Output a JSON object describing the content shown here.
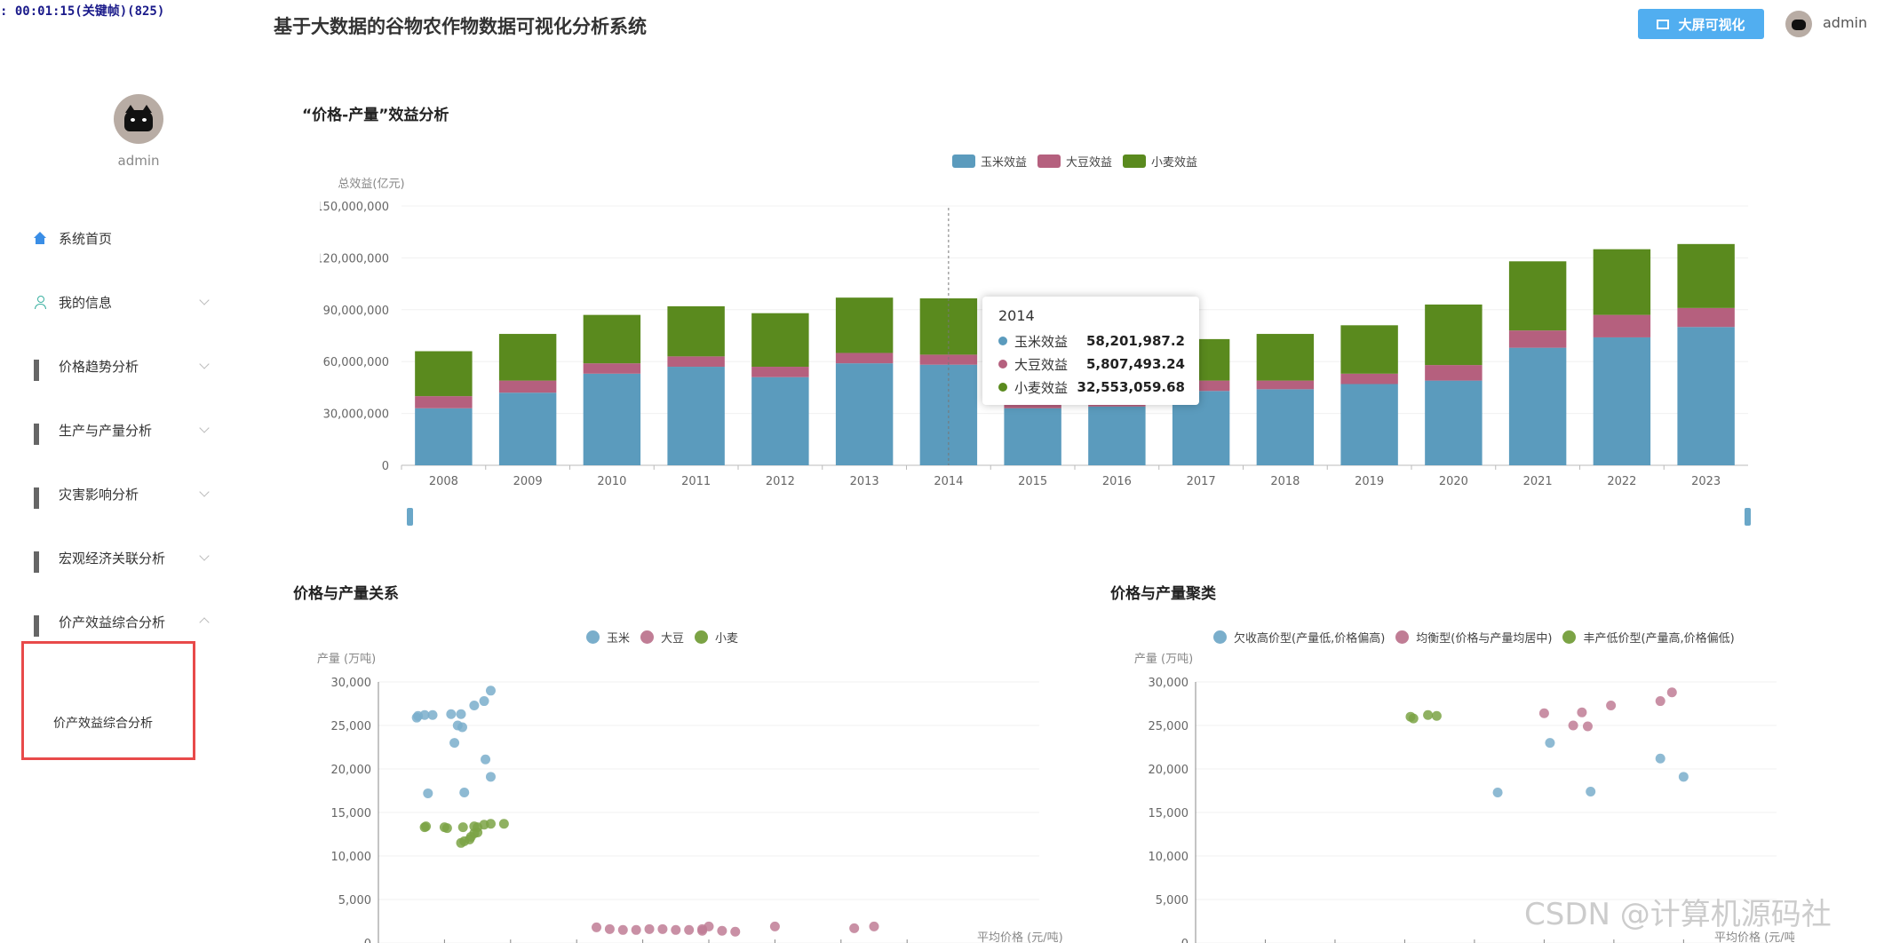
{
  "recording": {
    "text": ": 00:01:15(关键帧)(825)"
  },
  "header": {
    "title": "基于大数据的谷物农作物数据可视化分析系统",
    "big_screen_label": "大屏可视化",
    "username": "admin"
  },
  "sidebar": {
    "username": "admin",
    "items": [
      {
        "label": "系统首页",
        "icon": "home-icon",
        "expandable": false
      },
      {
        "label": "我的信息",
        "icon": "user-icon",
        "expandable": true
      },
      {
        "label": "价格趋势分析",
        "icon": "grid-icon",
        "expandable": true
      },
      {
        "label": "生产与产量分析",
        "icon": "grid-icon",
        "expandable": true
      },
      {
        "label": "灾害影响分析",
        "icon": "grid-icon",
        "expandable": true
      },
      {
        "label": "宏观经济关联分析",
        "icon": "grid-icon",
        "expandable": true
      },
      {
        "label": "价产效益综合分析",
        "icon": "grid-icon",
        "expandable": true,
        "expanded": true
      }
    ],
    "submenu": {
      "label": "价产效益综合分析"
    }
  },
  "colors": {
    "corn": "#5b9bbd",
    "soy": "#b5607e",
    "wheat": "#5a8a1e",
    "accent": "#51aef0",
    "highlight_border": "#e84a4a"
  },
  "chart_data": [
    {
      "type": "bar",
      "stacked": true,
      "title": "“价格-产量”效益分析",
      "ylabel": "总效益(亿元)",
      "ylim": [
        0,
        150000000
      ],
      "yticks": [
        "0",
        "30,000,000",
        "60,000,000",
        "90,000,000",
        "120,000,000",
        "150,000,000"
      ],
      "legend_position": "top-center",
      "categories": [
        "2008",
        "2009",
        "2010",
        "2011",
        "2012",
        "2013",
        "2014",
        "2015",
        "2016",
        "2017",
        "2018",
        "2019",
        "2020",
        "2021",
        "2022",
        "2023"
      ],
      "series": [
        {
          "name": "玉米效益",
          "values": [
            33000000,
            42000000,
            53000000,
            57000000,
            51000000,
            59000000,
            58201987.2,
            33000000,
            34000000,
            43000000,
            44000000,
            47000000,
            49000000,
            68000000,
            74000000,
            80000000
          ]
        },
        {
          "name": "大豆效益",
          "values": [
            7000000,
            7000000,
            6000000,
            6000000,
            6000000,
            6000000,
            5807493.24,
            3000000,
            3000000,
            6000000,
            5000000,
            6000000,
            9000000,
            10000000,
            13000000,
            11000000
          ]
        },
        {
          "name": "小麦效益",
          "values": [
            26000000,
            27000000,
            28000000,
            29000000,
            31000000,
            32000000,
            32553059.68,
            3000000,
            33000000,
            24000000,
            27000000,
            28000000,
            35000000,
            40000000,
            38000000,
            37000000
          ]
        }
      ],
      "tooltip": {
        "title": "2014",
        "rows": [
          {
            "name": "玉米效益",
            "value": "58,201,987.2"
          },
          {
            "name": "大豆效益",
            "value": "5,807,493.24"
          },
          {
            "name": "小麦效益",
            "value": "32,553,059.68"
          }
        ]
      }
    },
    {
      "type": "scatter",
      "title": "价格与产量关系",
      "ylabel": "产量 (万吨)",
      "xlabel": "平均价格 (元/吨)",
      "ylim": [
        0,
        30000
      ],
      "yticks": [
        "0",
        "5,000",
        "10,000",
        "15,000",
        "20,000",
        "25,000",
        "30,000"
      ],
      "legend_position": "top-center",
      "series": [
        {
          "name": "玉米",
          "points": [
            [
              0.058,
              25900
            ],
            [
              0.06,
              26100
            ],
            [
              0.07,
              26200
            ],
            [
              0.082,
              26200
            ],
            [
              0.11,
              26300
            ],
            [
              0.125,
              26300
            ],
            [
              0.12,
              25000
            ],
            [
              0.127,
              24800
            ],
            [
              0.145,
              27300
            ],
            [
              0.16,
              27800
            ],
            [
              0.17,
              29000
            ],
            [
              0.115,
              23000
            ],
            [
              0.162,
              21100
            ],
            [
              0.13,
              17300
            ],
            [
              0.17,
              19100
            ],
            [
              0.075,
              17200
            ]
          ]
        },
        {
          "name": "大豆",
          "points": [
            [
              0.33,
              1800
            ],
            [
              0.35,
              1600
            ],
            [
              0.37,
              1500
            ],
            [
              0.39,
              1500
            ],
            [
              0.41,
              1600
            ],
            [
              0.43,
              1600
            ],
            [
              0.45,
              1500
            ],
            [
              0.47,
              1500
            ],
            [
              0.49,
              1600
            ],
            [
              0.5,
              1900
            ],
            [
              0.52,
              1400
            ],
            [
              0.54,
              1300
            ],
            [
              0.6,
              1900
            ],
            [
              0.72,
              1700
            ],
            [
              0.75,
              1900
            ],
            [
              0.49,
              1400
            ]
          ]
        },
        {
          "name": "小麦",
          "points": [
            [
              0.07,
              13300
            ],
            [
              0.072,
              13400
            ],
            [
              0.1,
              13300
            ],
            [
              0.104,
              13200
            ],
            [
              0.125,
              11500
            ],
            [
              0.13,
              11700
            ],
            [
              0.14,
              12200
            ],
            [
              0.145,
              12600
            ],
            [
              0.15,
              13300
            ],
            [
              0.16,
              13600
            ],
            [
              0.17,
              13700
            ],
            [
              0.19,
              13700
            ],
            [
              0.138,
              11900
            ],
            [
              0.145,
              13400
            ],
            [
              0.128,
              13300
            ],
            [
              0.15,
              12700
            ]
          ]
        }
      ]
    },
    {
      "type": "scatter",
      "title": "价格与产量聚类",
      "ylabel": "产量 (万吨)",
      "xlabel": "平均价格 (元/吨)",
      "ylim": [
        0,
        30000
      ],
      "yticks": [
        "0",
        "5,000",
        "10,000",
        "15,000",
        "20,000",
        "25,000",
        "30,000"
      ],
      "legend_position": "top-center",
      "series": [
        {
          "name": "欠收高价型(产量低,价格偏高)",
          "points": [
            [
              0.52,
              17300
            ],
            [
              0.61,
              23000
            ],
            [
              0.68,
              17400
            ],
            [
              0.8,
              21200
            ],
            [
              0.84,
              19100
            ]
          ]
        },
        {
          "name": "均衡型(价格与产量均居中)",
          "points": [
            [
              0.6,
              26400
            ],
            [
              0.65,
              25000
            ],
            [
              0.665,
              26500
            ],
            [
              0.675,
              24900
            ],
            [
              0.715,
              27300
            ],
            [
              0.8,
              27800
            ],
            [
              0.82,
              28800
            ]
          ]
        },
        {
          "name": "丰产低价型(产量高,价格偏低)",
          "points": [
            [
              0.37,
              26000
            ],
            [
              0.375,
              25800
            ],
            [
              0.4,
              26200
            ],
            [
              0.415,
              26100
            ]
          ]
        }
      ]
    }
  ],
  "watermark": "CSDN @计算机源码社"
}
